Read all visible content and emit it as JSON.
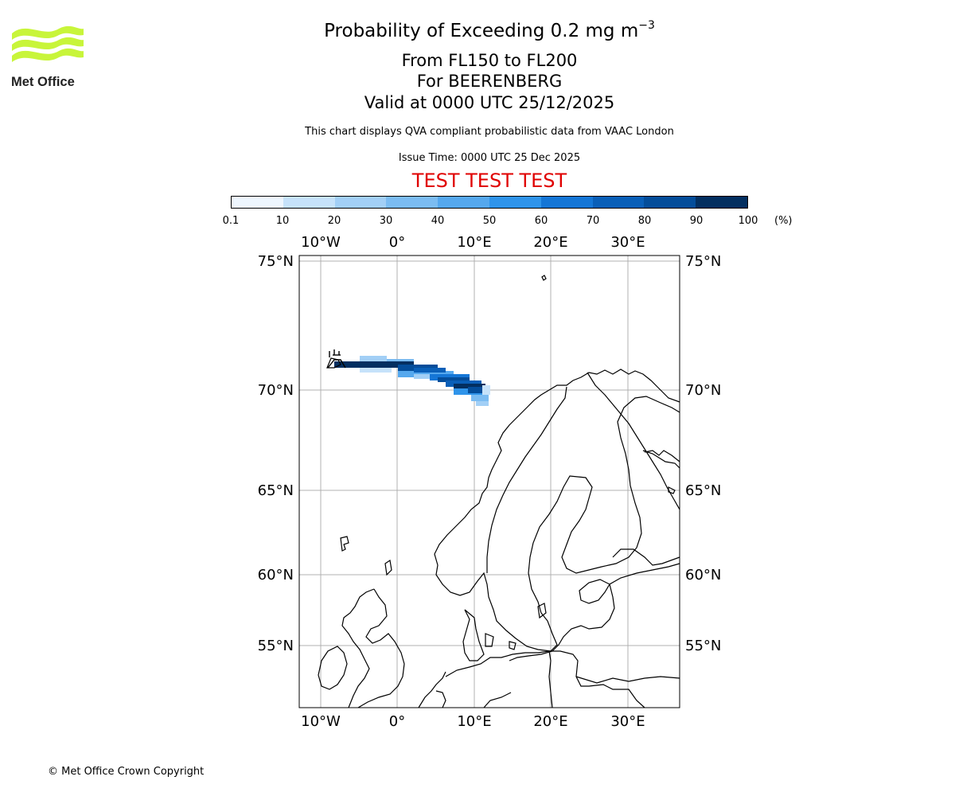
{
  "header": {
    "title": "Probability of Exceeding 0.2 mg m",
    "title_sup": "−3",
    "subtitle_1": "From FL150 to FL200",
    "subtitle_2": "For BEERENBERG",
    "subtitle_3": "Valid at 0000 UTC 25/12/2025",
    "disclaimer": "This chart displays QVA compliant probabilistic data from VAAC London",
    "issue_time": "Issue Time: 0000 UTC 25 Dec 2025",
    "test_banner": "TEST TEST TEST"
  },
  "logo": {
    "text": "Met Office",
    "color": "#c8f53a"
  },
  "colorbar": {
    "ticks": [
      "0.1",
      "10",
      "20",
      "30",
      "40",
      "50",
      "60",
      "70",
      "80",
      "90",
      "100"
    ],
    "unit": "(%)",
    "colors": [
      "#eef6fe",
      "#c6e2fa",
      "#a2cff6",
      "#7bbcf2",
      "#55a8ee",
      "#2f94ea",
      "#1576d6",
      "#0a5fb8",
      "#044d9a",
      "#032f60"
    ]
  },
  "map": {
    "lon_labels": [
      "10°W",
      "0°",
      "10°E",
      "20°E",
      "30°E"
    ],
    "lat_labels": [
      "75°N",
      "70°N",
      "65°N",
      "60°N",
      "55°N"
    ],
    "volcano": "BEERENBERG"
  },
  "footer": {
    "copyright": "© Met Office Crown Copyright"
  }
}
